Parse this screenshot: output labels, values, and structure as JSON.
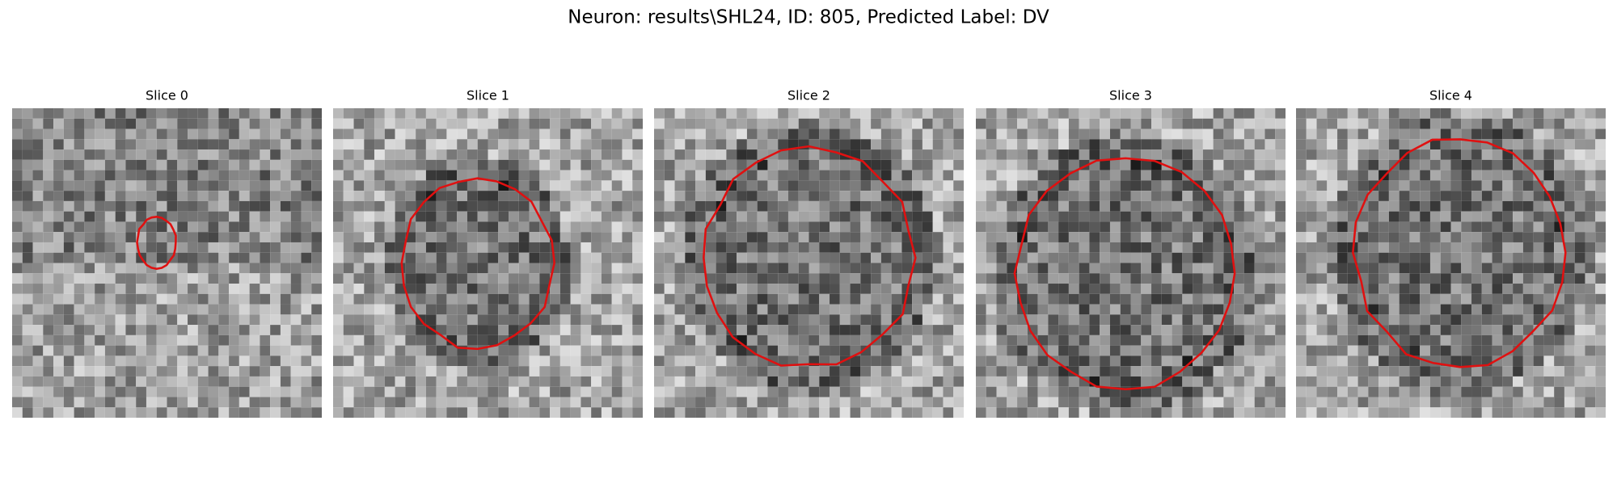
{
  "title": "Neuron: results\\SHL24, ID: 805, Predicted Label: DV",
  "panels": [
    {
      "title": "Slice 0"
    },
    {
      "title": "Slice 1"
    },
    {
      "title": "Slice 2"
    },
    {
      "title": "Slice 3"
    },
    {
      "title": "Slice 4"
    }
  ]
}
